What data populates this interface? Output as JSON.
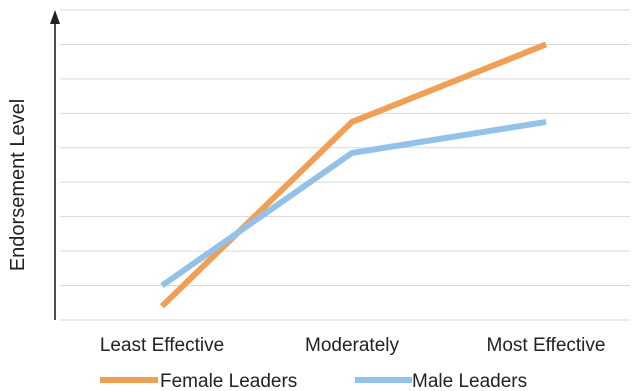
{
  "chart_data": {
    "type": "line",
    "title": "",
    "xlabel": "",
    "ylabel": "Endorsement Level",
    "categories": [
      "Least Effective",
      "Moderately",
      "Most Effective"
    ],
    "series": [
      {
        "name": "Female Leaders",
        "color": "#F0A055",
        "values": [
          0.4,
          5.75,
          8.0
        ]
      },
      {
        "name": "Male Leaders",
        "color": "#94C1E8",
        "values": [
          1.0,
          4.85,
          5.75
        ]
      }
    ],
    "ylim": [
      0,
      9
    ],
    "grid": true,
    "y_tick_labels_shown": false,
    "legend_position": "bottom"
  }
}
